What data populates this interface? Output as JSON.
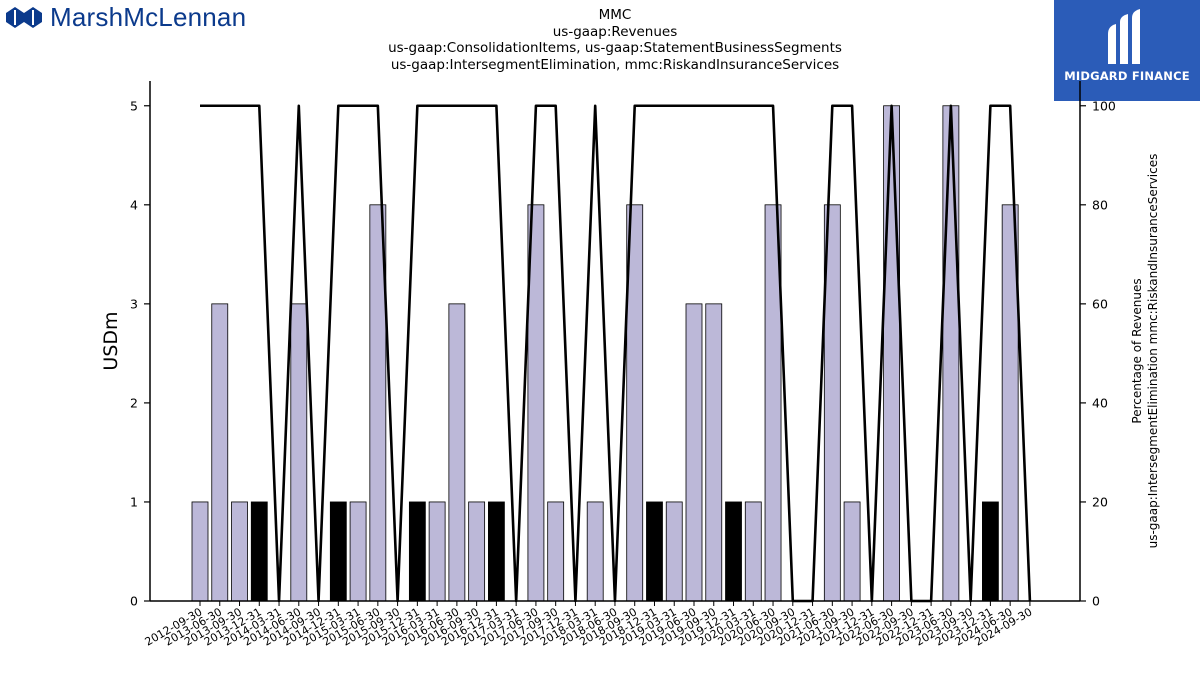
{
  "branding": {
    "company_logo_text": "MarshMcLennan",
    "badge_text": "MIDGARD FINANCE",
    "brand_color": "#0b3a8c",
    "badge_color": "#2b5cb8"
  },
  "chart_data": {
    "type": "bar",
    "title_lines": [
      "MMC",
      "us-gaap:Revenues",
      "us-gaap:ConsolidationItems, us-gaap:StatementBusinessSegments",
      "us-gaap:IntersegmentElimination, mmc:RiskandInsuranceServices"
    ],
    "ylabel": "USDm",
    "y2label_lines": [
      "Percentage of Revenues",
      "us-gaap:IntersegmentElimination mmc:RiskandInsuranceServices"
    ],
    "ylim": [
      0,
      5.25
    ],
    "y2lim": [
      0,
      105
    ],
    "yticks": [
      0,
      1,
      2,
      3,
      4,
      5
    ],
    "y2ticks": [
      0,
      20,
      40,
      60,
      80,
      100
    ],
    "bar_colors": {
      "light": "#bcb8d8",
      "dark": "#000000"
    },
    "line_color": "#000000",
    "categories": [
      "2012-09-30",
      "2013-06-30",
      "2013-09-30",
      "2013-12-31",
      "2014-03-31",
      "2014-06-30",
      "2014-09-30",
      "2014-12-31",
      "2015-03-31",
      "2015-06-30",
      "2015-09-30",
      "2015-12-31",
      "2016-03-31",
      "2016-06-30",
      "2016-09-30",
      "2016-12-31",
      "2017-03-31",
      "2017-06-30",
      "2017-09-30",
      "2017-12-31",
      "2018-03-31",
      "2018-06-30",
      "2018-09-30",
      "2018-12-31",
      "2019-03-31",
      "2019-06-30",
      "2019-09-30",
      "2019-12-31",
      "2020-03-31",
      "2020-06-30",
      "2020-09-30",
      "2020-12-31",
      "2021-06-30",
      "2021-09-30",
      "2021-12-31",
      "2022-06-30",
      "2022-09-30",
      "2022-12-31",
      "2023-06-30",
      "2023-09-30",
      "2023-12-31",
      "2024-06-30",
      "2024-09-30"
    ],
    "series": [
      {
        "values": [
          1,
          3,
          1,
          1,
          0,
          3,
          0,
          1,
          1,
          4,
          0,
          1,
          1,
          3,
          1,
          1,
          0,
          4,
          1,
          0,
          1,
          0,
          4,
          1,
          1,
          3,
          3,
          1,
          1,
          4,
          0,
          0,
          4,
          1,
          0,
          5,
          0,
          0,
          5,
          0,
          1,
          4,
          0
        ],
        "bar_shade": [
          "light",
          "light",
          "light",
          "dark",
          "light",
          "light",
          "light",
          "dark",
          "light",
          "light",
          "light",
          "dark",
          "light",
          "light",
          "light",
          "dark",
          "light",
          "light",
          "light",
          "light",
          "light",
          "light",
          "light",
          "dark",
          "light",
          "light",
          "light",
          "dark",
          "light",
          "light",
          "light",
          "light",
          "light",
          "light",
          "light",
          "light",
          "light",
          "light",
          "light",
          "light",
          "dark",
          "light",
          "light"
        ]
      },
      {
        "axis": "right",
        "values": [
          100,
          100,
          100,
          100,
          0,
          100,
          0,
          100,
          100,
          100,
          0,
          100,
          100,
          100,
          100,
          100,
          0,
          100,
          100,
          0,
          100,
          0,
          100,
          100,
          100,
          100,
          100,
          100,
          100,
          100,
          0,
          0,
          100,
          100,
          0,
          100,
          0,
          0,
          100,
          0,
          100,
          100,
          0
        ]
      }
    ]
  }
}
